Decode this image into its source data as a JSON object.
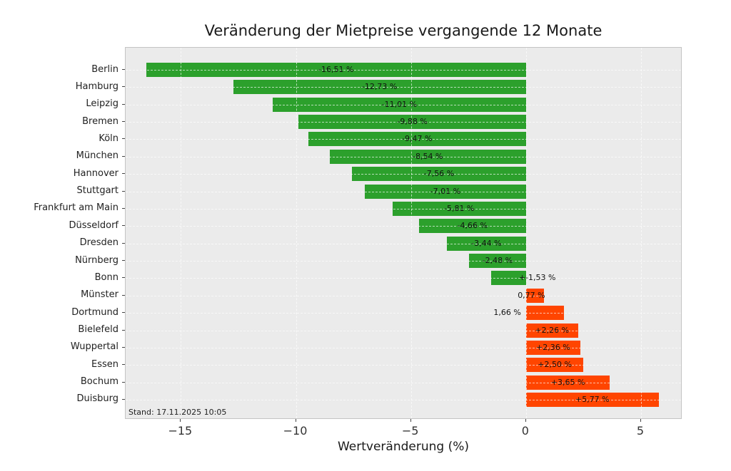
{
  "title": "Veränderung der Mietpreise vergangende 12 Monate",
  "footnote": "Stand: 17.11.2025 10:05",
  "chart_data": {
    "type": "bar",
    "orientation": "horizontal",
    "title": "Veränderung der Mietpreise vergangende 12 Monate",
    "xlabel": "Wertveränderung (%)",
    "ylabel": "",
    "xlim": [
      -17.4,
      6.8
    ],
    "xticks": [
      -15,
      -10,
      -5,
      0,
      5
    ],
    "xtick_labels": [
      "−15",
      "−10",
      "−5",
      "0",
      "5"
    ],
    "grid": true,
    "grid_style": "dashed",
    "legend": false,
    "plot_background": "#ebebeb",
    "figure_background": "#ffffff",
    "negative_color": "#2ca02c",
    "positive_color": "#ff4500",
    "points": [
      {
        "category": "Berlin",
        "value": -16.51,
        "label": "-16,51 %",
        "label_pos": "center"
      },
      {
        "category": "Hamburg",
        "value": -12.73,
        "label": "-12,73 %",
        "label_pos": "center"
      },
      {
        "category": "Leipzig",
        "value": -11.01,
        "label": "-11,01 %",
        "label_pos": "center"
      },
      {
        "category": "Bremen",
        "value": -9.88,
        "label": "-9,88 %",
        "label_pos": "center"
      },
      {
        "category": "Köln",
        "value": -9.47,
        "label": "-9,47 %",
        "label_pos": "center"
      },
      {
        "category": "München",
        "value": -8.54,
        "label": "-8,54 %",
        "label_pos": "center"
      },
      {
        "category": "Hannover",
        "value": -7.56,
        "label": "-7,56 %",
        "label_pos": "center"
      },
      {
        "category": "Stuttgart",
        "value": -7.01,
        "label": "-7,01 %",
        "label_pos": "center"
      },
      {
        "category": "Frankfurt am Main",
        "value": -5.81,
        "label": "-5,81 %",
        "label_pos": "center"
      },
      {
        "category": "Düsseldorf",
        "value": -4.66,
        "label": "-4,66 %",
        "label_pos": "center"
      },
      {
        "category": "Dresden",
        "value": -3.44,
        "label": "-3,44 %",
        "label_pos": "center"
      },
      {
        "category": "Nürnberg",
        "value": -2.48,
        "label": "-2,48 %",
        "label_pos": "center"
      },
      {
        "category": "Bonn",
        "value": -1.53,
        "label": "+-1,53 %",
        "label_pos": "zero-right"
      },
      {
        "category": "Münster",
        "value": 0.77,
        "label": "0,77 %",
        "label_pos": "tip-left"
      },
      {
        "category": "Dortmund",
        "value": 1.66,
        "label": "1,66 %",
        "label_pos": "zero-left"
      },
      {
        "category": "Bielefeld",
        "value": 2.26,
        "label": "+2,26 %",
        "label_pos": "center"
      },
      {
        "category": "Wuppertal",
        "value": 2.36,
        "label": "+2,36 %",
        "label_pos": "center"
      },
      {
        "category": "Essen",
        "value": 2.5,
        "label": "+2,50 %",
        "label_pos": "center"
      },
      {
        "category": "Bochum",
        "value": 3.65,
        "label": "+3,65 %",
        "label_pos": "center"
      },
      {
        "category": "Duisburg",
        "value": 5.77,
        "label": "+5,77 %",
        "label_pos": "center"
      }
    ]
  }
}
